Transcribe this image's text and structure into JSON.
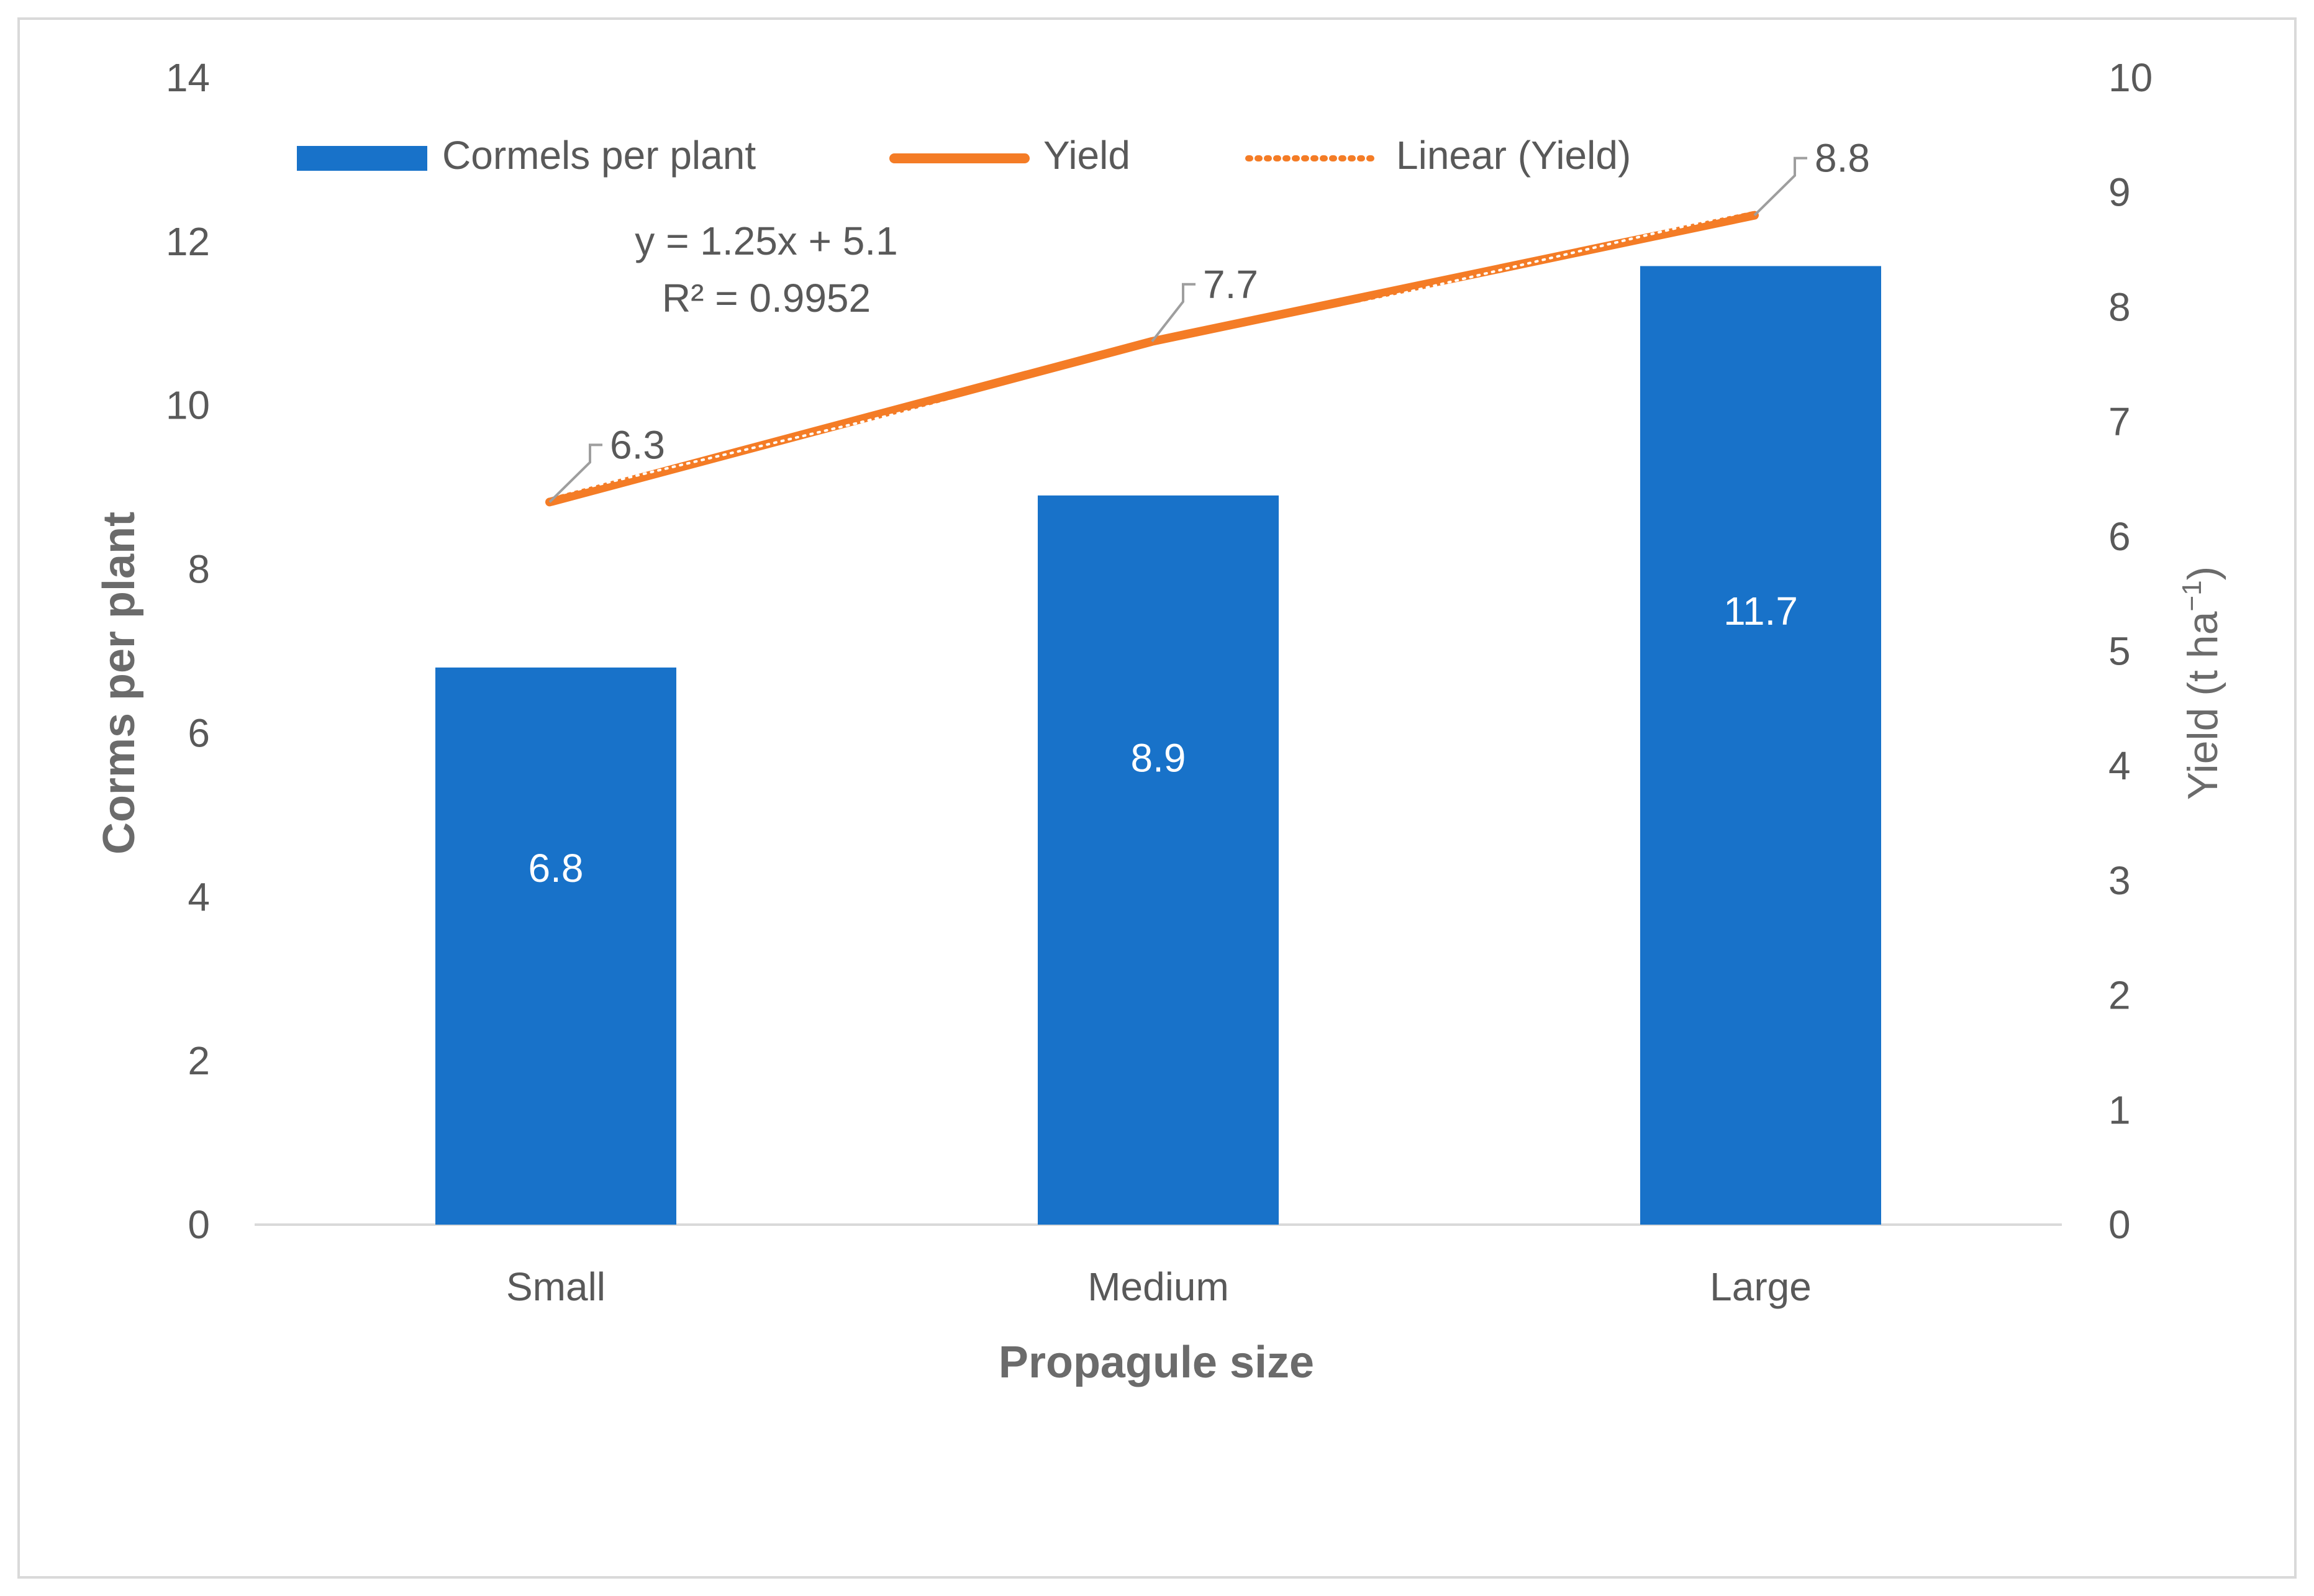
{
  "colors": {
    "bar": "#1872C9",
    "line": "#F47C26",
    "trend": "#F47C26",
    "axis_text": "#595959",
    "axis_title": "#6B6B6B",
    "callout": "#9E9E9E",
    "frame": "#D9D9D9",
    "baseline": "#D9D9D9",
    "bar_label": "#FFFFFF"
  },
  "chart_data": {
    "type": "bar",
    "categories": [
      "Small",
      "Medium",
      "Large"
    ],
    "series": [
      {
        "name": "Cormels per plant",
        "type": "bar",
        "axis": "left",
        "values": [
          6.8,
          8.9,
          11.7
        ],
        "labels": [
          "6.8",
          "8.9",
          "11.7"
        ]
      },
      {
        "name": "Yield",
        "type": "line",
        "axis": "right",
        "values": [
          6.3,
          7.7,
          8.8
        ],
        "labels": [
          "6.3",
          "7.7",
          "8.8"
        ]
      }
    ],
    "trendline": {
      "name": "Linear (Yield)",
      "of_series": "Yield",
      "slope": 1.25,
      "intercept": 5.1,
      "equation": "y = 1.25x + 5.1",
      "r2_label": "R² = 0.9952"
    },
    "xlabel": "Propagule size",
    "ylabel": "Corms per plant",
    "y2label": "Yield (t ha",
    "y2label_sup": "−1",
    "y2label_end": ")",
    "ylim": [
      0,
      14
    ],
    "y2lim": [
      0,
      10
    ],
    "yticks": [
      "0",
      "2",
      "4",
      "6",
      "8",
      "10",
      "12",
      "14"
    ],
    "y2ticks": [
      "0",
      "1",
      "2",
      "3",
      "4",
      "5",
      "6",
      "7",
      "8",
      "9",
      "10"
    ],
    "legend": [
      "Cormels per plant",
      "Yield",
      "Linear (Yield)"
    ],
    "legend_position": "top",
    "grid": false
  }
}
